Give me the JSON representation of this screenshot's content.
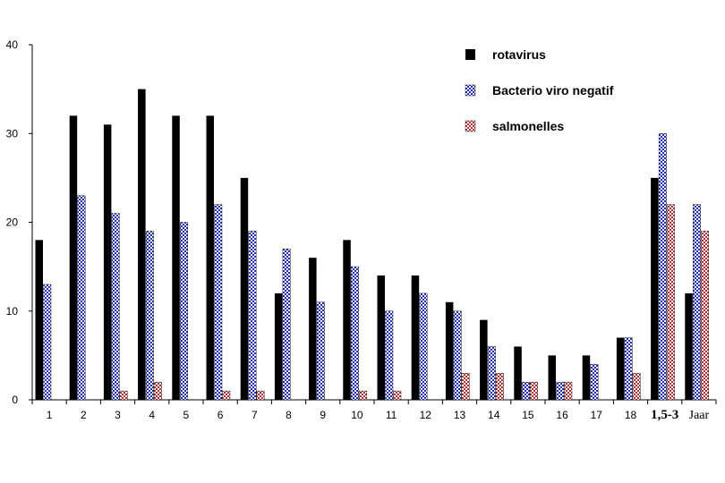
{
  "chart_data": {
    "type": "bar",
    "categories": [
      "1",
      "2",
      "3",
      "4",
      "5",
      "6",
      "7",
      "8",
      "9",
      "10",
      "11",
      "12",
      "13",
      "14",
      "15",
      "16",
      "17",
      "18",
      "1,5-3",
      "Jaar"
    ],
    "series": [
      {
        "name": "rotavirus",
        "color": "#000000",
        "pattern": "solid",
        "values": [
          18,
          32,
          31,
          35,
          32,
          32,
          25,
          12,
          16,
          18,
          14,
          14,
          11,
          9,
          6,
          5,
          5,
          7,
          25,
          12
        ]
      },
      {
        "name": "Bacterio viro negatif",
        "color": "#1f2fb0",
        "pattern": "blue-check",
        "values": [
          13,
          23,
          21,
          19,
          20,
          22,
          19,
          17,
          11,
          15,
          10,
          12,
          10,
          6,
          2,
          2,
          4,
          7,
          30,
          22
        ]
      },
      {
        "name": "salmonelles",
        "color": "#b03030",
        "pattern": "red-check",
        "values": [
          0,
          0,
          1,
          2,
          0,
          1,
          1,
          0,
          0,
          1,
          1,
          0,
          3,
          3,
          2,
          2,
          0,
          3,
          22,
          19
        ]
      }
    ],
    "y_ticks": [
      "0",
      "10",
      "20",
      "30",
      "40"
    ],
    "ylim": [
      0,
      40
    ],
    "title": "",
    "xlabel": "",
    "ylabel": "",
    "grid": false,
    "legend": "top-right"
  }
}
